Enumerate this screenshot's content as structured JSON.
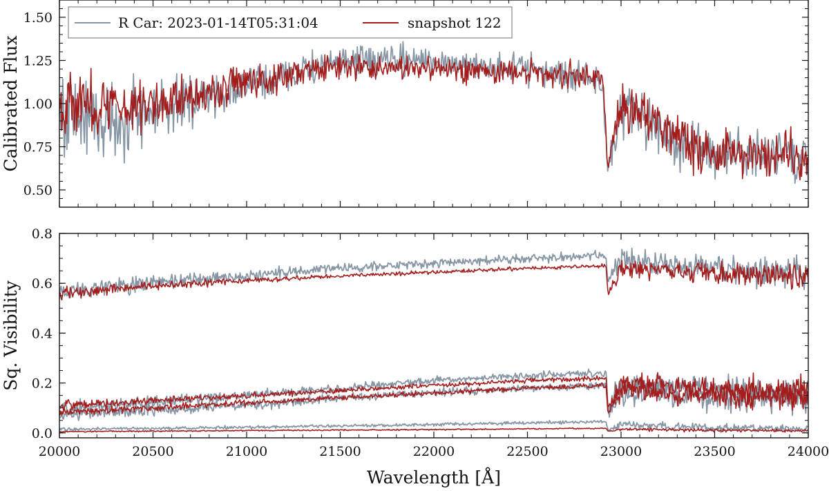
{
  "colors": {
    "observed": "#8796a5",
    "model": "#a31d1d",
    "axis": "#111111",
    "legend_border": "#888888"
  },
  "chart_data": [
    {
      "type": "line",
      "panel": "top",
      "title": "",
      "xlabel": "",
      "ylabel": "Calibrated Flux",
      "xlim": [
        20000,
        24000
      ],
      "ylim": [
        0.4,
        1.6
      ],
      "xticks": [
        20000,
        20500,
        21000,
        21500,
        22000,
        22500,
        23000,
        23500,
        24000
      ],
      "yticks": [
        0.5,
        0.75,
        1.0,
        1.25,
        1.5
      ],
      "ytick_labels": [
        "0.50",
        "0.75",
        "1.00",
        "1.25",
        "1.50"
      ],
      "legend": {
        "placement": "top-left",
        "entries": [
          "R Car: 2023-01-14T05:31:04",
          "snapshot 122"
        ]
      },
      "series": [
        {
          "name": "R Car: 2023-01-14T05:31:04",
          "color": "#8796a5",
          "x": [
            20000,
            20250,
            20500,
            20750,
            21000,
            21250,
            21500,
            21750,
            22000,
            22250,
            22500,
            22750,
            22900,
            22930,
            23000,
            23250,
            23500,
            23750,
            24000
          ],
          "y": [
            0.95,
            0.9,
            0.95,
            1.03,
            1.1,
            1.18,
            1.24,
            1.25,
            1.25,
            1.22,
            1.2,
            1.16,
            1.13,
            0.6,
            0.95,
            0.8,
            0.72,
            0.7,
            0.68
          ],
          "noise": [
            0.2,
            0.19,
            0.16,
            0.11,
            0.09,
            0.08,
            0.07,
            0.07,
            0.07,
            0.07,
            0.07,
            0.07,
            0.06,
            0.05,
            0.15,
            0.13,
            0.12,
            0.12,
            0.13
          ]
        },
        {
          "name": "snapshot 122",
          "color": "#a31d1d",
          "x": [
            20000,
            20250,
            20500,
            20750,
            21000,
            21250,
            21500,
            21750,
            22000,
            22250,
            22500,
            22750,
            22900,
            22930,
            23000,
            23250,
            23500,
            23750,
            24000
          ],
          "y": [
            1.02,
            0.98,
            1.0,
            1.06,
            1.12,
            1.18,
            1.21,
            1.21,
            1.2,
            1.19,
            1.18,
            1.16,
            1.15,
            0.65,
            1.0,
            0.85,
            0.7,
            0.72,
            0.7
          ],
          "noise": [
            0.16,
            0.15,
            0.12,
            0.09,
            0.08,
            0.07,
            0.06,
            0.06,
            0.06,
            0.06,
            0.06,
            0.06,
            0.05,
            0.04,
            0.13,
            0.12,
            0.11,
            0.11,
            0.12
          ]
        }
      ]
    },
    {
      "type": "line",
      "panel": "bottom",
      "title": "",
      "xlabel": "Wavelength [Å]",
      "ylabel": "Sq. Visibility",
      "xlim": [
        20000,
        24000
      ],
      "ylim": [
        -0.02,
        0.8
      ],
      "xticks": [
        20000,
        20500,
        21000,
        21500,
        22000,
        22500,
        23000,
        23500,
        24000
      ],
      "yticks": [
        0.0,
        0.2,
        0.4,
        0.6,
        0.8
      ],
      "ytick_labels": [
        "0.0",
        "0.2",
        "0.4",
        "0.6",
        "0.8"
      ],
      "series": [
        {
          "name": "",
          "color": "#8796a5",
          "x": [
            20000,
            20500,
            21000,
            21500,
            22000,
            22500,
            22920,
            22930,
            23000,
            23500,
            24000
          ],
          "y": [
            0.57,
            0.6,
            0.63,
            0.66,
            0.68,
            0.7,
            0.71,
            0.6,
            0.69,
            0.66,
            0.64
          ],
          "noise": [
            0.03,
            0.025,
            0.02,
            0.015,
            0.015,
            0.015,
            0.015,
            0.02,
            0.04,
            0.045,
            0.06
          ]
        },
        {
          "name": "",
          "color": "#8796a5",
          "x": [
            20000,
            20500,
            21000,
            21500,
            22000,
            22500,
            22920,
            22930,
            23000,
            23500,
            24000
          ],
          "y": [
            0.1,
            0.12,
            0.15,
            0.18,
            0.21,
            0.23,
            0.24,
            0.1,
            0.2,
            0.17,
            0.16
          ],
          "noise": [
            0.02,
            0.02,
            0.015,
            0.015,
            0.012,
            0.012,
            0.012,
            0.02,
            0.04,
            0.045,
            0.05
          ]
        },
        {
          "name": "",
          "color": "#8796a5",
          "x": [
            20000,
            20500,
            21000,
            21500,
            22000,
            22500,
            22920,
            22930,
            23000,
            23500,
            24000
          ],
          "y": [
            0.07,
            0.09,
            0.11,
            0.14,
            0.16,
            0.18,
            0.19,
            0.08,
            0.16,
            0.14,
            0.13
          ],
          "noise": [
            0.02,
            0.02,
            0.015,
            0.015,
            0.012,
            0.012,
            0.012,
            0.02,
            0.035,
            0.04,
            0.045
          ]
        },
        {
          "name": "",
          "color": "#8796a5",
          "x": [
            20000,
            20500,
            21000,
            21500,
            22000,
            22500,
            22920,
            22930,
            23000,
            23500,
            24000
          ],
          "y": [
            0.015,
            0.018,
            0.022,
            0.028,
            0.033,
            0.04,
            0.045,
            0.01,
            0.035,
            0.02,
            0.015
          ],
          "noise": [
            0.005,
            0.005,
            0.005,
            0.005,
            0.005,
            0.005,
            0.005,
            0.005,
            0.012,
            0.012,
            0.012
          ]
        },
        {
          "name": "",
          "color": "#a31d1d",
          "x": [
            20000,
            20500,
            21000,
            21500,
            22000,
            22500,
            22920,
            22930,
            23000,
            23500,
            24000
          ],
          "y": [
            0.56,
            0.59,
            0.61,
            0.63,
            0.645,
            0.66,
            0.67,
            0.56,
            0.66,
            0.64,
            0.63
          ],
          "noise": [
            0.02,
            0.015,
            0.008,
            0.006,
            0.006,
            0.006,
            0.006,
            0.01,
            0.03,
            0.035,
            0.04
          ]
        },
        {
          "name": "",
          "color": "#a31d1d",
          "x": [
            20000,
            20500,
            21000,
            21500,
            22000,
            22500,
            22920,
            22930,
            23000,
            23500,
            24000
          ],
          "y": [
            0.11,
            0.13,
            0.15,
            0.17,
            0.19,
            0.21,
            0.22,
            0.1,
            0.2,
            0.18,
            0.17
          ],
          "noise": [
            0.015,
            0.012,
            0.01,
            0.008,
            0.008,
            0.008,
            0.008,
            0.015,
            0.035,
            0.04,
            0.045
          ]
        },
        {
          "name": "",
          "color": "#a31d1d",
          "x": [
            20000,
            20500,
            21000,
            21500,
            22000,
            22500,
            22920,
            22930,
            23000,
            23500,
            24000
          ],
          "y": [
            0.08,
            0.1,
            0.12,
            0.14,
            0.16,
            0.18,
            0.19,
            0.08,
            0.17,
            0.15,
            0.14
          ],
          "noise": [
            0.015,
            0.012,
            0.01,
            0.008,
            0.008,
            0.008,
            0.008,
            0.015,
            0.035,
            0.04,
            0.045
          ]
        },
        {
          "name": "",
          "color": "#a31d1d",
          "x": [
            20000,
            20500,
            21000,
            21500,
            22000,
            22500,
            22920,
            22930,
            23000,
            23500,
            24000
          ],
          "y": [
            0.005,
            0.007,
            0.009,
            0.011,
            0.013,
            0.016,
            0.018,
            0.005,
            0.015,
            0.01,
            0.008
          ],
          "noise": [
            0.002,
            0.002,
            0.002,
            0.002,
            0.002,
            0.002,
            0.002,
            0.002,
            0.005,
            0.005,
            0.005
          ]
        }
      ]
    }
  ]
}
